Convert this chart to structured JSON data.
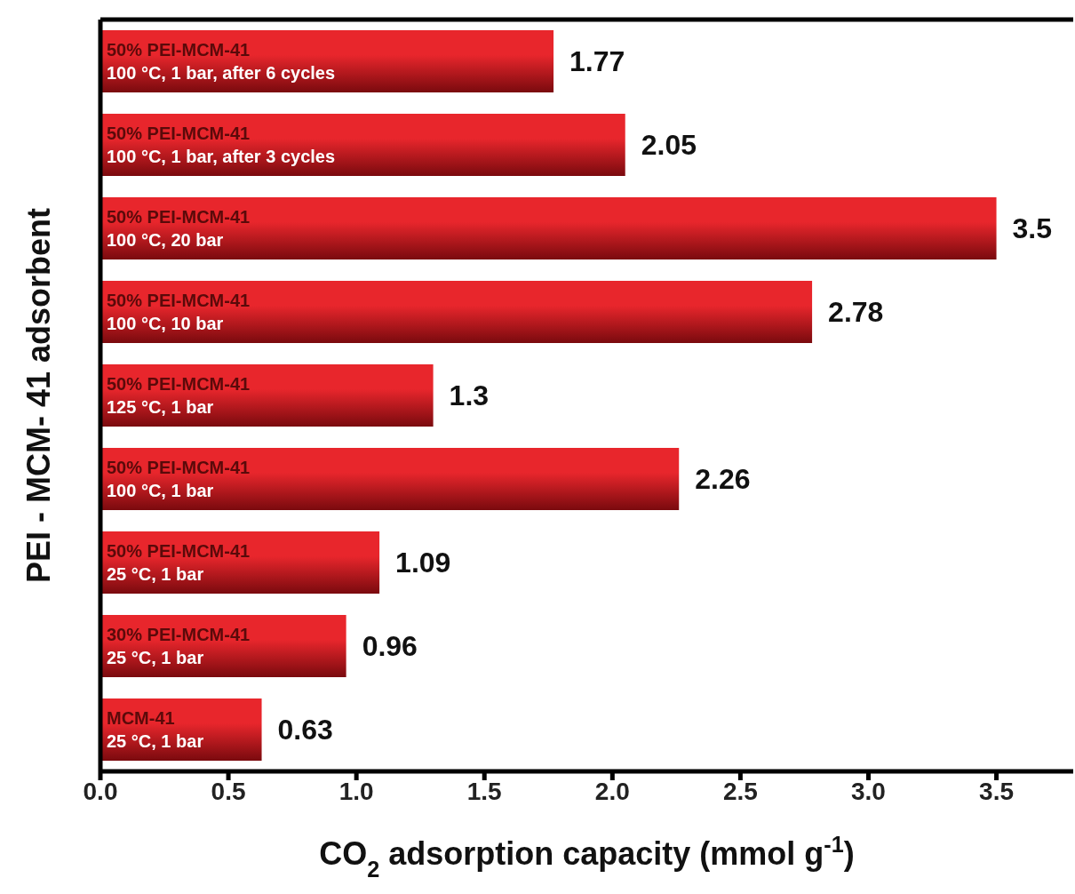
{
  "chart_data": {
    "type": "bar",
    "orientation": "horizontal",
    "xlabel": "CO$_{2}$ adsorption capacity (mmol g$^{-1}$)",
    "ylabel": "PEI - MCM- 41 adsorbent",
    "categories": [
      "50% PEI-MCM-41\n100 °C, 1 bar, after 6 cycles",
      "50% PEI-MCM-41\n100 °C, 1 bar, after 3 cycles",
      "50% PEI-MCM-41\n100 °C, 20 bar",
      "50% PEI-MCM-41\n100 °C, 10 bar",
      "50% PEI-MCM-41\n125 °C, 1 bar",
      "50% PEI-MCM-41\n100 °C, 1 bar",
      "50% PEI-MCM-41\n25 °C, 1 bar",
      "30% PEI-MCM-41\n25 °C, 1 bar",
      "MCM-41\n25 °C, 1 bar"
    ],
    "values": [
      1.77,
      2.05,
      3.5,
      2.78,
      1.3,
      2.26,
      1.09,
      0.96,
      0.63
    ],
    "color": "#e8262c",
    "xlim": [
      0,
      3.8
    ],
    "xticks": [
      {
        "value": 0,
        "label": "0.0"
      },
      0.5,
      {
        "value": 1,
        "label": "1.0"
      },
      1.5,
      {
        "value": 2,
        "label": "2.0"
      },
      2.5,
      {
        "value": 3,
        "label": "3.0"
      },
      3.5
    ],
    "data_labels": true,
    "grid": false,
    "legend": false
  }
}
